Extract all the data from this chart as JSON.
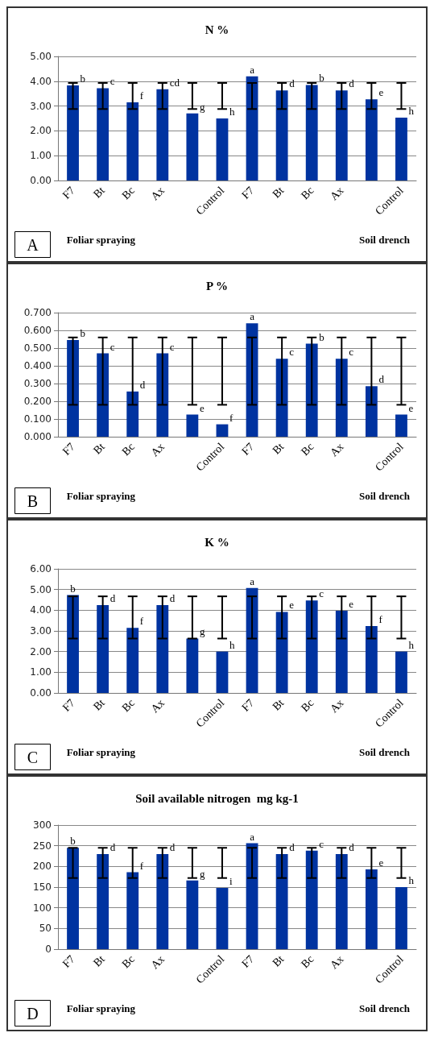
{
  "chart_data": [
    {
      "type": "bar",
      "title": "N %",
      "categories": [
        "F7",
        "Bt",
        "Bc",
        "Ax",
        null,
        "Control",
        "F7",
        "Bt",
        "Bc",
        "Ax",
        null,
        "Control"
      ],
      "color": "#0033a0",
      "values": [
        3.83,
        3.72,
        3.15,
        3.68,
        2.7,
        2.5,
        4.2,
        3.63,
        3.85,
        3.63,
        3.27,
        2.53
      ],
      "errors": [
        [
          2.88,
          3.93
        ],
        [
          2.88,
          3.93
        ],
        [
          2.88,
          3.93
        ],
        [
          2.88,
          3.93
        ],
        [
          2.88,
          3.93
        ],
        [
          2.88,
          3.93
        ],
        [
          2.88,
          3.93
        ],
        [
          2.88,
          3.93
        ],
        [
          2.88,
          3.93
        ],
        [
          2.88,
          3.93
        ],
        [
          2.88,
          3.93
        ],
        [
          2.88,
          3.93
        ]
      ],
      "value_labels": [
        "b",
        "c",
        "f",
        "cd",
        "g",
        "h",
        "a",
        "d",
        "b",
        "d",
        "e",
        "h"
      ],
      "ylim": [
        0,
        5
      ],
      "yticks": [
        {
          "value": 0,
          "label": "0.00"
        },
        {
          "value": 1,
          "label": "1.00"
        },
        {
          "value": 2,
          "label": "2.00"
        },
        {
          "value": 3,
          "label": "3.00"
        },
        {
          "value": 4,
          "label": "4.00"
        },
        {
          "value": 5,
          "label": "5.00"
        }
      ],
      "grid": "y",
      "annotations": [
        "Foliar spraying",
        "Soil drench",
        "A"
      ]
    },
    {
      "type": "bar",
      "title": "P %",
      "categories": [
        "F7",
        "Bt",
        "Bc",
        "Ax",
        null,
        "Control",
        "F7",
        "Bt",
        "Bc",
        "Ax",
        null,
        "Control"
      ],
      "color": "#0033a0",
      "values": [
        0.545,
        0.47,
        0.255,
        0.47,
        0.125,
        0.07,
        0.64,
        0.44,
        0.525,
        0.44,
        0.285,
        0.125
      ],
      "errors": [
        [
          0.18,
          0.56
        ],
        [
          0.18,
          0.56
        ],
        [
          0.18,
          0.56
        ],
        [
          0.18,
          0.56
        ],
        [
          0.18,
          0.56
        ],
        [
          0.18,
          0.56
        ],
        [
          0.18,
          0.56
        ],
        [
          0.18,
          0.56
        ],
        [
          0.18,
          0.56
        ],
        [
          0.18,
          0.56
        ],
        [
          0.18,
          0.56
        ],
        [
          0.18,
          0.56
        ]
      ],
      "value_labels": [
        "b",
        "c",
        "d",
        "c",
        "e",
        "f",
        "a",
        "c",
        "b",
        "c",
        "d",
        "e"
      ],
      "ylim": [
        0,
        0.7
      ],
      "yticks": [
        {
          "value": 0,
          "label": "0.000"
        },
        {
          "value": 0.1,
          "label": "0.100"
        },
        {
          "value": 0.2,
          "label": "0.200"
        },
        {
          "value": 0.3,
          "label": "0.300"
        },
        {
          "value": 0.4,
          "label": "0.400"
        },
        {
          "value": 0.5,
          "label": "0.500"
        },
        {
          "value": 0.6,
          "label": "0.600"
        },
        {
          "value": 0.7,
          "label": "0.700"
        }
      ],
      "grid": "y",
      "annotations": [
        "Foliar spraying",
        "Soil drench",
        "B"
      ]
    },
    {
      "type": "bar",
      "title": "K %",
      "categories": [
        "F7",
        "Bt",
        "Bc",
        "Ax",
        null,
        "Control",
        "F7",
        "Bt",
        "Bc",
        "Ax",
        null,
        "Control"
      ],
      "color": "#0033a0",
      "values": [
        4.73,
        4.25,
        3.15,
        4.25,
        2.63,
        2.0,
        5.07,
        3.92,
        4.47,
        3.97,
        3.23,
        2.0
      ],
      "errors": [
        [
          2.63,
          4.67
        ],
        [
          2.63,
          4.67
        ],
        [
          2.63,
          4.67
        ],
        [
          2.63,
          4.67
        ],
        [
          2.63,
          4.67
        ],
        [
          2.63,
          4.67
        ],
        [
          2.63,
          4.67
        ],
        [
          2.63,
          4.67
        ],
        [
          2.63,
          4.67
        ],
        [
          2.63,
          4.67
        ],
        [
          2.63,
          4.67
        ],
        [
          2.63,
          4.67
        ]
      ],
      "value_labels": [
        "b",
        "d",
        "f",
        "d",
        "g",
        "h",
        "a",
        "e",
        "c",
        "e",
        "f",
        "h"
      ],
      "ylim": [
        0,
        6
      ],
      "yticks": [
        {
          "value": 0,
          "label": "0.00"
        },
        {
          "value": 1,
          "label": "1.00"
        },
        {
          "value": 2,
          "label": "2.00"
        },
        {
          "value": 3,
          "label": "3.00"
        },
        {
          "value": 4,
          "label": "4.00"
        },
        {
          "value": 5,
          "label": "5.00"
        },
        {
          "value": 6,
          "label": "6.00"
        }
      ],
      "grid": "y",
      "annotations": [
        "Foliar spraying",
        "Soil drench",
        "C"
      ]
    },
    {
      "type": "bar",
      "title": "Soil available nitrogen  mg kg-1",
      "categories": [
        "F7",
        "Bt",
        "Bc",
        "Ax",
        null,
        "Control",
        "F7",
        "Bt",
        "Bc",
        "Ax",
        null,
        "Control"
      ],
      "color": "#0033a0",
      "values": [
        245,
        230,
        186,
        230,
        166,
        148,
        256,
        230,
        238,
        230,
        193,
        150
      ],
      "errors": [
        [
          172,
          245
        ],
        [
          172,
          245
        ],
        [
          172,
          245
        ],
        [
          172,
          245
        ],
        [
          172,
          245
        ],
        [
          172,
          245
        ],
        [
          172,
          245
        ],
        [
          172,
          245
        ],
        [
          172,
          245
        ],
        [
          172,
          245
        ],
        [
          172,
          245
        ],
        [
          172,
          245
        ]
      ],
      "value_labels": [
        "b",
        "d",
        "f",
        "d",
        "g",
        "i",
        "a",
        "d",
        "c",
        "d",
        "e",
        "h"
      ],
      "ylim": [
        0,
        300
      ],
      "yticks": [
        0,
        50,
        100,
        150,
        200,
        250,
        300
      ],
      "grid": "y",
      "annotations": [
        "Foliar spraying",
        "Soil drench",
        "D"
      ]
    }
  ]
}
